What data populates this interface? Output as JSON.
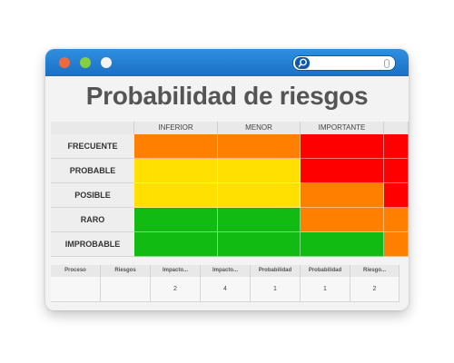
{
  "window": {
    "search": {
      "placeholder": ""
    }
  },
  "page": {
    "title": "Probabilidad de riesgos"
  },
  "matrix": {
    "columns": [
      "",
      "INFERIOR",
      "MENOR",
      "IMPORTANTE",
      ""
    ],
    "rows": [
      {
        "label": "FRECUENTE",
        "colors": [
          "#ff7f00",
          "#ff7f00",
          "#ff0000",
          "#ff0000"
        ]
      },
      {
        "label": "PROBABLE",
        "colors": [
          "#ffe000",
          "#ffe000",
          "#ff0000",
          "#ff0000"
        ]
      },
      {
        "label": "POSIBLE",
        "colors": [
          "#ffe000",
          "#ffe000",
          "#ff7f00",
          "#ff0000"
        ]
      },
      {
        "label": "RARO",
        "colors": [
          "#11bb11",
          "#11bb11",
          "#ff7f00",
          "#ff7f00"
        ]
      },
      {
        "label": "IMPROBABLE",
        "colors": [
          "#11bb11",
          "#11bb11",
          "#11bb11",
          "#ff7f00"
        ]
      }
    ]
  },
  "table": {
    "headers": [
      "Proceso",
      "Riesgos",
      "Impacto...",
      "Impacto...",
      "Probabilidad",
      "Probabilidad",
      "Riesgo..."
    ],
    "row": [
      "",
      "",
      "2",
      "4",
      "1",
      "1",
      "2"
    ]
  },
  "colors": {
    "titlebar": "#1a6fc4",
    "red": "#ff0000",
    "orange": "#ff7f00",
    "yellow": "#ffe000",
    "green": "#11bb11"
  }
}
